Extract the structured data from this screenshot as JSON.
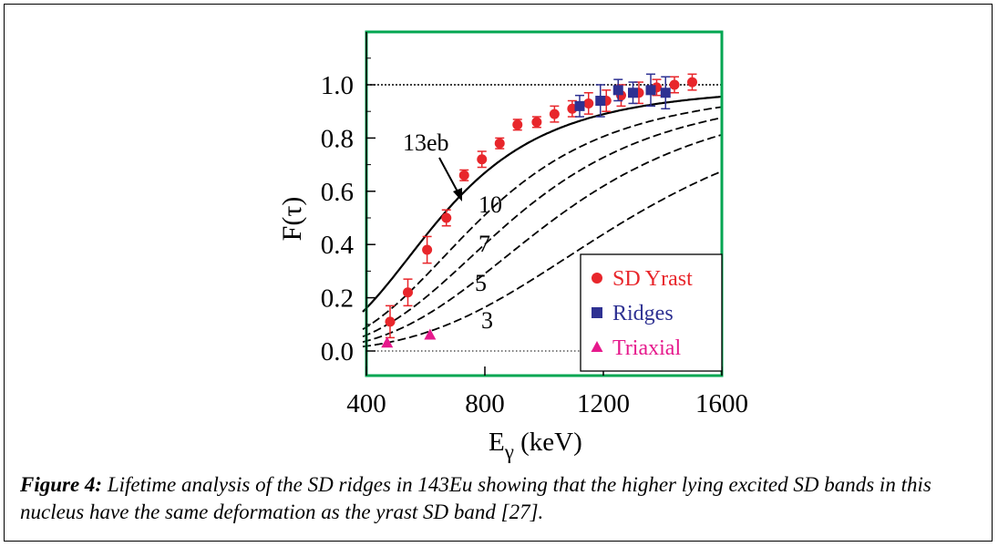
{
  "chart_data": {
    "type": "scatter",
    "xlabel_main": "E",
    "xlabel_sub": "γ",
    "xlabel_unit": "(keV)",
    "ylabel": "F(τ)",
    "xlim": [
      400,
      1600
    ],
    "ylim": [
      -0.02,
      1.2
    ],
    "x_ticks": [
      400,
      800,
      1200,
      1600
    ],
    "x_tick_labels": [
      "400",
      "800",
      "1200",
      "1600"
    ],
    "y_ticks": [
      0.0,
      0.2,
      0.4,
      0.6,
      0.8,
      1.0
    ],
    "y_tick_labels": [
      "0.0",
      "0.2",
      "0.4",
      "0.6",
      "0.8",
      "1.0"
    ],
    "reference_lines": [
      1.0,
      0.0
    ],
    "curves": [
      {
        "label": "13eb",
        "style": "solid",
        "E50": 650
      },
      {
        "label": "10",
        "style": "dashed",
        "E50": 790
      },
      {
        "label": "7",
        "style": "dashed",
        "E50": 900
      },
      {
        "label": "5",
        "style": "dashed",
        "E50": 1040
      },
      {
        "label": "3",
        "style": "dashed",
        "E50": 1290
      }
    ],
    "series": [
      {
        "name": "SD Yrast",
        "marker": "circle",
        "color": "#e8262b",
        "points": [
          {
            "x": 480,
            "y": 0.11,
            "err": 0.06
          },
          {
            "x": 540,
            "y": 0.22,
            "err": 0.05
          },
          {
            "x": 605,
            "y": 0.38,
            "err": 0.05
          },
          {
            "x": 670,
            "y": 0.5,
            "err": 0.03
          },
          {
            "x": 730,
            "y": 0.66,
            "err": 0.02
          },
          {
            "x": 790,
            "y": 0.72,
            "err": 0.03
          },
          {
            "x": 850,
            "y": 0.78,
            "err": 0.02
          },
          {
            "x": 910,
            "y": 0.85,
            "err": 0.02
          },
          {
            "x": 975,
            "y": 0.86,
            "err": 0.02
          },
          {
            "x": 1035,
            "y": 0.89,
            "err": 0.03
          },
          {
            "x": 1095,
            "y": 0.91,
            "err": 0.03
          },
          {
            "x": 1150,
            "y": 0.93,
            "err": 0.04
          },
          {
            "x": 1210,
            "y": 0.94,
            "err": 0.04
          },
          {
            "x": 1260,
            "y": 0.96,
            "err": 0.04
          },
          {
            "x": 1320,
            "y": 0.97,
            "err": 0.04
          },
          {
            "x": 1380,
            "y": 0.99,
            "err": 0.03
          },
          {
            "x": 1440,
            "y": 1.0,
            "err": 0.03
          },
          {
            "x": 1500,
            "y": 1.01,
            "err": 0.03
          }
        ]
      },
      {
        "name": "Ridges",
        "marker": "square",
        "color": "#2e3192",
        "points": [
          {
            "x": 1120,
            "y": 0.92,
            "err": 0.04
          },
          {
            "x": 1190,
            "y": 0.94,
            "err": 0.06
          },
          {
            "x": 1250,
            "y": 0.98,
            "err": 0.04
          },
          {
            "x": 1300,
            "y": 0.97,
            "err": 0.04
          },
          {
            "x": 1360,
            "y": 0.98,
            "err": 0.06
          },
          {
            "x": 1410,
            "y": 0.97,
            "err": 0.06
          }
        ]
      },
      {
        "name": "Triaxial",
        "marker": "triangle",
        "color": "#e6198c",
        "points": [
          {
            "x": 470,
            "y": 0.03,
            "err": 0
          },
          {
            "x": 615,
            "y": 0.06,
            "err": 0
          }
        ]
      }
    ],
    "legend_position": "bottom-right"
  },
  "caption": {
    "label": "Figure 4:",
    "text": " Lifetime analysis of the SD ridges in 143Eu showing that the higher lying excited SD bands in this nucleus have the same deformation as the yrast SD band [27]."
  },
  "colors": {
    "frame_border": "#00a651",
    "axis": "#000000"
  }
}
